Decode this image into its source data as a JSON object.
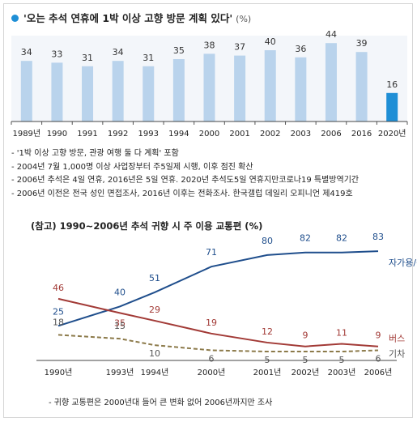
{
  "title": "'오는 추석 연휴에 1박 이상 고향 방문 계획 있다'",
  "unit": "(%)",
  "notes": [
    "- '1박 이상 고향 방문, 관광 여행 둘 다 계획' 포함",
    "- 2004년 7월 1,000명 이상 사업장부터 주5일제 시행, 이후 점진 확산",
    "- 2006년 추석은 4일 연휴, 2016년은 5일 연휴. 2020년 추석도5일 연휴지만코로나19 특별방역기간",
    "- 2006년 이전은 전국 성인 면접조사, 2016년 이후는 전화조사. 한국갤럽 데일리 오피니언 제419호"
  ],
  "chart2_title": "(참고) 1990~2006년  추석 귀향 시 주 이용 교통편 (%)",
  "footnote": "- 귀향 교통편은 2000년대 들어 큰 변화 없어 2006년까지만 조사",
  "colors": {
    "bar": "#b9d3ec",
    "bar_highlight": "#1f8fd6",
    "car": "#1f4e8c",
    "bus": "#a23a36",
    "train": "#8c7a4a"
  },
  "chart_data": [
    {
      "type": "bar",
      "categories": [
        "1989년",
        "1990",
        "1991",
        "1992",
        "1993",
        "1994",
        "2000",
        "2001",
        "2002",
        "2003",
        "2006",
        "2016",
        "2020년"
      ],
      "values": [
        34,
        33,
        31,
        34,
        31,
        35,
        38,
        37,
        40,
        36,
        44,
        39,
        16
      ],
      "highlight_index": 12,
      "title": "'오는 추석 연휴에 1박 이상 고향 방문 계획 있다'",
      "unit": "(%)",
      "ylim": [
        0,
        50
      ],
      "grid": false
    },
    {
      "type": "line",
      "title": "(참고) 1990~2006년  추석 귀향 시 주 이용 교통편 (%)",
      "categories": [
        "1990년",
        "1993년",
        "1994년",
        "2000년",
        "2001년",
        "2002년",
        "2003년",
        "2006년"
      ],
      "series": [
        {
          "name": "자가용/승용차",
          "values": [
            25,
            40,
            51,
            71,
            80,
            82,
            82,
            83
          ]
        },
        {
          "name": "버스",
          "values": [
            46,
            35,
            29,
            19,
            12,
            9,
            11,
            9
          ]
        },
        {
          "name": "기차",
          "values": [
            18,
            15,
            10,
            6,
            5,
            5,
            5,
            6
          ]
        }
      ],
      "ylim": [
        0,
        90
      ],
      "grid": false
    }
  ]
}
